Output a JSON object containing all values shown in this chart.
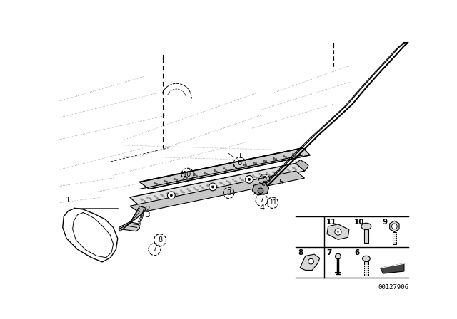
{
  "bg_color": "#ffffff",
  "line_color": "#000000",
  "light_line": "#aaaaaa",
  "dot_line": "#999999",
  "part_number": "00127906",
  "figure_size": [
    6.4,
    4.48
  ],
  "dpi": 100
}
